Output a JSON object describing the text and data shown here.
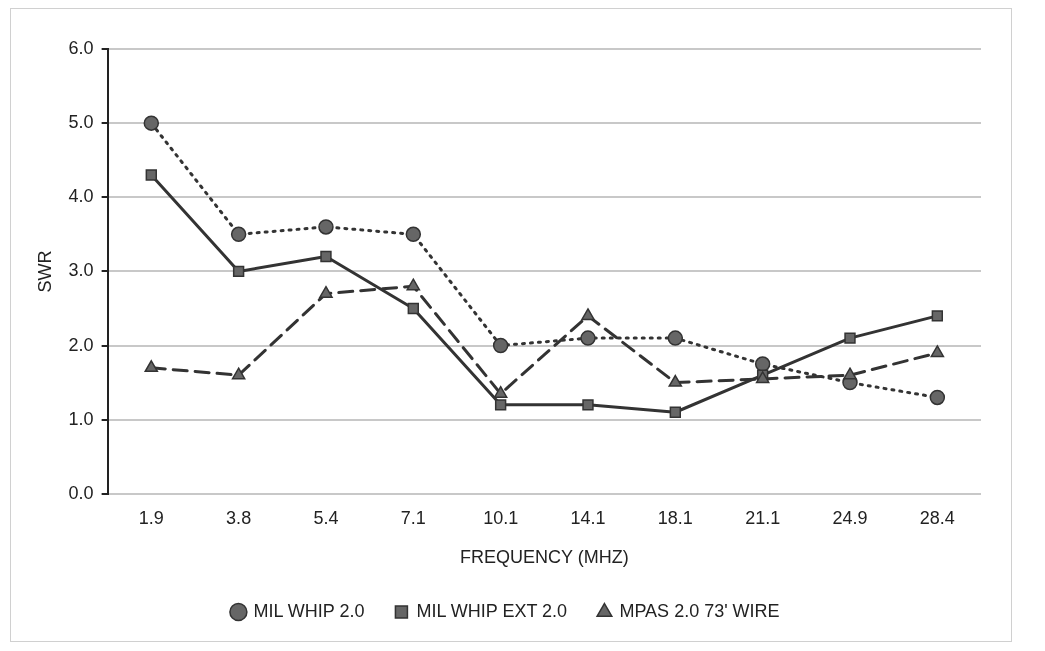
{
  "chart_data": {
    "type": "line",
    "xlabel": "FREQUENCY (MHZ)",
    "ylabel": "SWR",
    "categories": [
      "1.9",
      "3.8",
      "5.4",
      "7.1",
      "10.1",
      "14.1",
      "18.1",
      "21.1",
      "24.9",
      "28.4"
    ],
    "series": [
      {
        "name": "MIL WHIP 2.0",
        "color": "#333333",
        "marker": "circle",
        "line_style": "dotted",
        "values": [
          5.0,
          3.5,
          3.6,
          3.5,
          2.0,
          2.1,
          2.1,
          1.75,
          1.5,
          1.3
        ]
      },
      {
        "name": "MIL WHIP EXT 2.0",
        "color": "#333333",
        "marker": "square",
        "line_style": "solid",
        "values": [
          4.3,
          3.0,
          3.2,
          2.5,
          1.2,
          1.2,
          1.1,
          1.6,
          2.1,
          2.4
        ]
      },
      {
        "name": "MPAS 2.0 73' WIRE",
        "color": "#333333",
        "marker": "triangle",
        "line_style": "dashed",
        "values": [
          1.7,
          1.6,
          2.7,
          2.8,
          1.35,
          2.4,
          1.5,
          1.55,
          1.6,
          1.9
        ]
      }
    ],
    "ylim": [
      0,
      6
    ],
    "yticks": [
      {
        "value": 0,
        "label": "0.0"
      },
      {
        "value": 1,
        "label": "1.0"
      },
      {
        "value": 2,
        "label": "2.0"
      },
      {
        "value": 3,
        "label": "3.0"
      },
      {
        "value": 4,
        "label": "4.0"
      },
      {
        "value": 5,
        "label": "5.0"
      },
      {
        "value": 6,
        "label": "6.0"
      }
    ],
    "grid": "y",
    "legend": "bottom"
  }
}
